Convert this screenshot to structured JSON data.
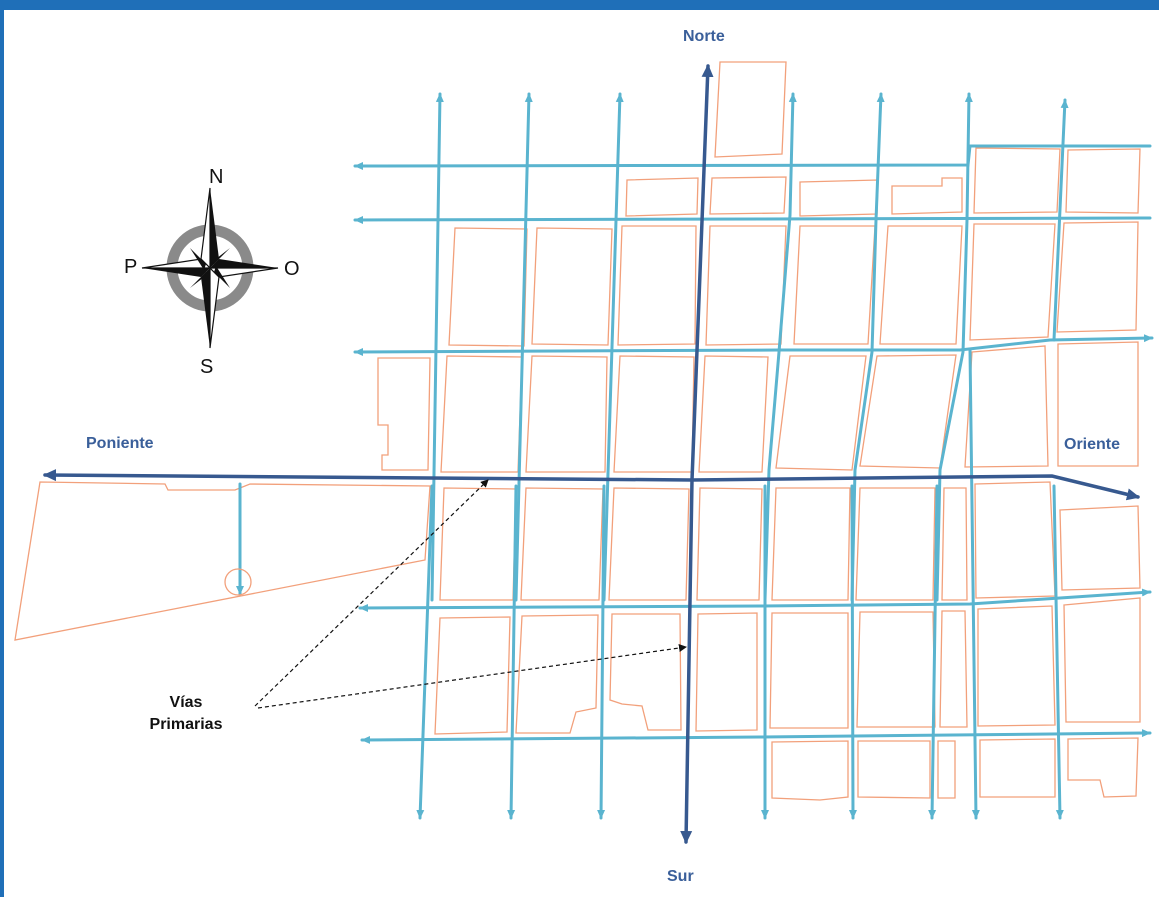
{
  "colors": {
    "frame": "#1f6fb8",
    "block_outline": "#f2a07b",
    "secondary_road": "#5ab4cf",
    "primary_road": "#37598f",
    "direction_label": "#3a5f9a",
    "compass_ring": "#8a8a8a"
  },
  "directions": {
    "north": "Norte",
    "south": "Sur",
    "west": "Poniente",
    "east": "Oriente"
  },
  "compass": {
    "n": "N",
    "s": "S",
    "p": "P",
    "o": "O"
  },
  "annotation": {
    "line1": "Vías",
    "line2": "Primarias"
  },
  "icons": {
    "compass": "compass-rose-icon",
    "arrow": "arrow-head-icon"
  }
}
